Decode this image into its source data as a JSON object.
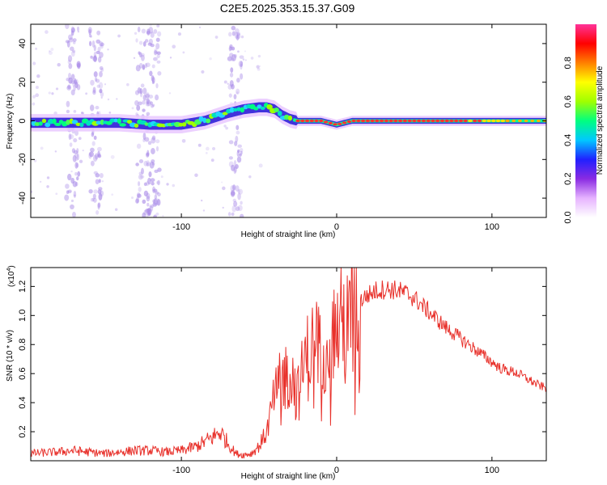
{
  "title": "C2E5.2025.353.15.37.G09",
  "colors": {
    "snr_line": "#e8312b",
    "axes": "#000000",
    "scatter": "#a98be8",
    "spectrum_core": "#2f20d8",
    "spectrum_hot": "#ff3030"
  },
  "chart_data": [
    {
      "type": "heatmap",
      "name": "spectrogram",
      "xlabel": "Height of straight line (km)",
      "ylabel": "Frequency (Hz)",
      "xlim": [
        -197,
        135
      ],
      "ylim": [
        -50,
        50
      ],
      "xticks": [
        -100,
        0,
        100
      ],
      "yticks": [
        -40,
        -20,
        0,
        20,
        40
      ],
      "xtick_labels": [
        "-100",
        "0",
        "100"
      ],
      "ytick_labels": [
        "-40",
        "-20",
        "0",
        "20",
        "40"
      ],
      "colorbar": {
        "label": "Normalized spectral amplitude",
        "range": [
          0,
          1
        ],
        "ticks": [
          0.0,
          0.2,
          0.4,
          0.6,
          0.8
        ],
        "tick_labels": [
          "0.0",
          "0.2",
          "0.4",
          "0.6",
          "0.8"
        ],
        "colormap": [
          "#ffffff",
          "#e6b3ff",
          "#8a2be2",
          "#2020ff",
          "#00c8ff",
          "#00ff80",
          "#a0ff00",
          "#ffff00",
          "#ff8000",
          "#ff0000",
          "#ff3399"
        ]
      },
      "ridge": {
        "x": [
          -197,
          -170,
          -140,
          -120,
          -100,
          -85,
          -70,
          -60,
          -50,
          -45,
          -40,
          -35,
          -30,
          -25,
          -20,
          -10,
          -5,
          0,
          5,
          10,
          20,
          40,
          80,
          110,
          135
        ],
        "y": [
          -1,
          -1,
          -1,
          -2,
          -2,
          0,
          4,
          6,
          7,
          7,
          6,
          3,
          1,
          0,
          0,
          0,
          -1,
          -2,
          -1,
          0,
          0,
          0,
          0,
          0,
          0
        ]
      },
      "scatter_columns_x": [
        -170,
        -155,
        -125,
        -118,
        -65
      ]
    },
    {
      "type": "line",
      "name": "snr",
      "xlabel": "Height of straight line (km)",
      "ylabel": "SNR (10 * v/v)",
      "multiplier": "(x10",
      "multiplier_exp": "4",
      "multiplier_close": ")",
      "xlim": [
        -197,
        135
      ],
      "ylim": [
        0.0,
        1.33
      ],
      "xticks": [
        -100,
        0,
        100
      ],
      "yticks": [
        0.2,
        0.4,
        0.6,
        0.8,
        1.0,
        1.2
      ],
      "xtick_labels": [
        "-100",
        "0",
        "100"
      ],
      "ytick_labels": [
        "0.2",
        "0.4",
        "0.6",
        "0.8",
        "1.0",
        "1.2"
      ],
      "series": [
        {
          "name": "SNR",
          "x": [
            -197,
            -180,
            -170,
            -160,
            -150,
            -140,
            -130,
            -120,
            -110,
            -100,
            -90,
            -80,
            -75,
            -70,
            -65,
            -60,
            -55,
            -50,
            -45,
            -40,
            -35,
            -30,
            -25,
            -20,
            -15,
            -10,
            -5,
            0,
            5,
            10,
            15,
            20,
            25,
            30,
            35,
            40,
            45,
            50,
            55,
            60,
            65,
            70,
            75,
            80,
            85,
            90,
            95,
            100,
            105,
            110,
            115,
            120,
            125,
            130,
            135
          ],
          "y": [
            0.05,
            0.06,
            0.07,
            0.06,
            0.05,
            0.06,
            0.07,
            0.07,
            0.06,
            0.07,
            0.1,
            0.16,
            0.2,
            0.12,
            0.05,
            0.04,
            0.05,
            0.1,
            0.2,
            0.45,
            0.55,
            0.62,
            0.45,
            0.7,
            0.78,
            0.82,
            0.86,
            0.9,
            0.97,
            1.05,
            1.1,
            1.14,
            1.17,
            1.18,
            1.18,
            1.17,
            1.15,
            1.12,
            1.07,
            1.02,
            0.97,
            0.92,
            0.88,
            0.84,
            0.8,
            0.76,
            0.72,
            0.68,
            0.64,
            0.62,
            0.61,
            0.58,
            0.55,
            0.52,
            0.5
          ]
        }
      ]
    }
  ]
}
